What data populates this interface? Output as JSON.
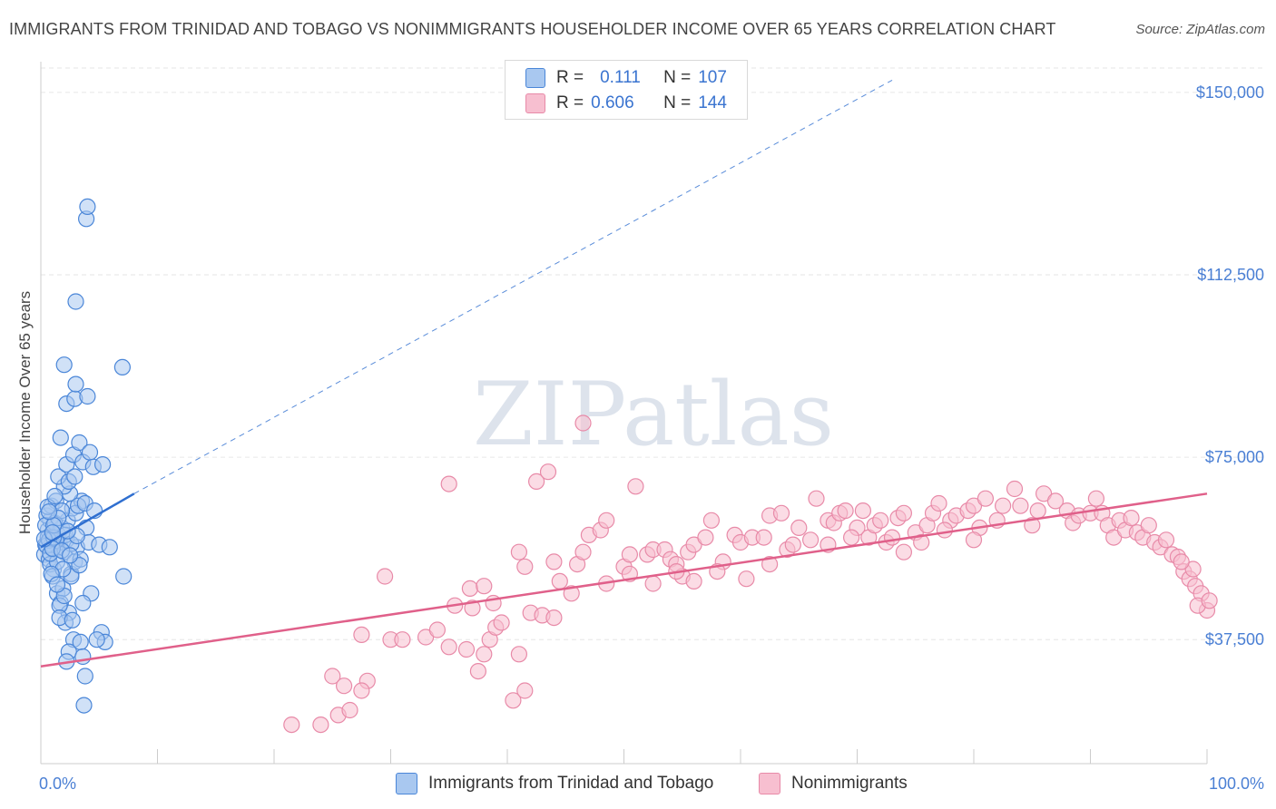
{
  "header": {
    "title": "IMMIGRANTS FROM TRINIDAD AND TOBAGO VS NONIMMIGRANTS HOUSEHOLDER INCOME OVER 65 YEARS CORRELATION CHART",
    "source": "Source: ZipAtlas.com"
  },
  "watermark": "ZIPatlas",
  "legend": {
    "rows": [
      {
        "r_label": "R =",
        "r_value": "0.111",
        "n_label": "N =",
        "n_value": "107"
      },
      {
        "r_label": "R =",
        "r_value": "0.606",
        "n_label": "N =",
        "n_value": "144"
      }
    ]
  },
  "bottom_legend": {
    "blue_label": "Immigrants from Trinidad and Tobago",
    "pink_label": "Nonimmigrants"
  },
  "colors": {
    "blue_fill": "#a9c8f0",
    "blue_stroke": "#4a86d8",
    "blue_line": "#2f6fd0",
    "pink_fill": "#f7bfd0",
    "pink_stroke": "#e88aa8",
    "pink_line": "#e0608a",
    "tick_text": "#4a7fd4",
    "grid": "#e6e6e6"
  },
  "chart_data": {
    "type": "scatter",
    "title": "IMMIGRANTS FROM TRINIDAD AND TOBAGO VS NONIMMIGRANTS HOUSEHOLDER INCOME OVER 65 YEARS CORRELATION CHART",
    "xlabel": "",
    "ylabel": "Householder Income Over 65 years",
    "xlim": [
      0,
      100
    ],
    "ylim": [
      12000,
      155000
    ],
    "x_tick_labels": [
      "0.0%",
      "100.0%"
    ],
    "y_ticks": [
      37500,
      75000,
      112500,
      150000
    ],
    "y_tick_labels": [
      "$37,500",
      "$75,000",
      "$112,500",
      "$150,000"
    ],
    "series": [
      {
        "name": "Immigrants from Trinidad and Tobago",
        "r": 0.111,
        "n": 107,
        "trend": {
          "x0": 0,
          "y0": 56500,
          "x1": 8,
          "y1": 67500,
          "extended_to_x": 73,
          "extended_y": 152500
        },
        "points": [
          [
            0.4,
            57000
          ],
          [
            0.6,
            60000
          ],
          [
            0.3,
            55000
          ],
          [
            0.8,
            62000
          ],
          [
            1.0,
            58000
          ],
          [
            0.5,
            63000
          ],
          [
            1.2,
            56000
          ],
          [
            0.7,
            54000
          ],
          [
            1.5,
            59000
          ],
          [
            0.9,
            65000
          ],
          [
            1.1,
            52000
          ],
          [
            0.4,
            61000
          ],
          [
            1.6,
            57500
          ],
          [
            2.0,
            55500
          ],
          [
            0.6,
            58500
          ],
          [
            1.3,
            66000
          ],
          [
            0.8,
            53000
          ],
          [
            1.8,
            60500
          ],
          [
            2.2,
            58000
          ],
          [
            1.0,
            50500
          ],
          [
            1.4,
            47000
          ],
          [
            1.9,
            48000
          ],
          [
            1.7,
            45000
          ],
          [
            2.4,
            43000
          ],
          [
            2.1,
            41000
          ],
          [
            1.6,
            44500
          ],
          [
            2.6,
            51000
          ],
          [
            2.9,
            53500
          ],
          [
            3.1,
            56500
          ],
          [
            2.3,
            62000
          ],
          [
            2.7,
            64500
          ],
          [
            3.5,
            66000
          ],
          [
            3.0,
            63500
          ],
          [
            2.5,
            67500
          ],
          [
            2.0,
            69000
          ],
          [
            1.5,
            71000
          ],
          [
            2.2,
            73500
          ],
          [
            2.8,
            75500
          ],
          [
            3.3,
            78000
          ],
          [
            1.7,
            79000
          ],
          [
            3.6,
            74000
          ],
          [
            4.2,
            76000
          ],
          [
            4.5,
            73000
          ],
          [
            5.3,
            73500
          ],
          [
            3.9,
            60500
          ],
          [
            4.1,
            57500
          ],
          [
            2.6,
            50500
          ],
          [
            3.4,
            54000
          ],
          [
            2.1,
            59000
          ],
          [
            1.2,
            61500
          ],
          [
            1.8,
            64000
          ],
          [
            2.4,
            70000
          ],
          [
            2.9,
            71000
          ],
          [
            3.2,
            65000
          ],
          [
            3.8,
            65500
          ],
          [
            4.6,
            64000
          ],
          [
            5.0,
            57000
          ],
          [
            5.9,
            56500
          ],
          [
            4.3,
            47000
          ],
          [
            2.2,
            86000
          ],
          [
            2.0,
            94000
          ],
          [
            2.9,
            87000
          ],
          [
            3.0,
            90000
          ],
          [
            4.0,
            87500
          ],
          [
            7.0,
            93500
          ],
          [
            3.0,
            107000
          ],
          [
            3.9,
            124000
          ],
          [
            4.0,
            126500
          ],
          [
            3.6,
            45000
          ],
          [
            2.8,
            37500
          ],
          [
            2.4,
            35000
          ],
          [
            3.4,
            37000
          ],
          [
            3.6,
            34000
          ],
          [
            3.8,
            30000
          ],
          [
            3.7,
            24000
          ],
          [
            5.2,
            39000
          ],
          [
            5.5,
            37000
          ],
          [
            7.1,
            50500
          ],
          [
            4.8,
            37500
          ],
          [
            2.2,
            33000
          ],
          [
            0.9,
            57000
          ],
          [
            1.3,
            57800
          ],
          [
            0.5,
            56800
          ],
          [
            0.7,
            57900
          ],
          [
            1.1,
            58500
          ],
          [
            1.4,
            53500
          ],
          [
            0.8,
            55200
          ],
          [
            1.0,
            56200
          ],
          [
            0.3,
            58200
          ],
          [
            1.9,
            52000
          ],
          [
            2.6,
            57200
          ],
          [
            1.5,
            62500
          ],
          [
            0.6,
            64800
          ],
          [
            1.2,
            67000
          ],
          [
            2.0,
            46500
          ],
          [
            1.6,
            42000
          ],
          [
            2.7,
            41500
          ],
          [
            3.1,
            58800
          ],
          [
            0.9,
            51000
          ],
          [
            1.4,
            48800
          ],
          [
            2.3,
            59800
          ],
          [
            1.1,
            61000
          ],
          [
            3.3,
            52800
          ],
          [
            0.7,
            63800
          ],
          [
            1.8,
            55800
          ],
          [
            2.5,
            54800
          ],
          [
            1.0,
            59500
          ]
        ]
      },
      {
        "name": "Nonimmigrants",
        "r": 0.606,
        "n": 144,
        "trend": {
          "x0": 0,
          "y0": 32000,
          "x1": 100,
          "y1": 67500
        },
        "points": [
          [
            21.5,
            20000
          ],
          [
            24.0,
            20000
          ],
          [
            25.5,
            22000
          ],
          [
            26.5,
            23000
          ],
          [
            25.0,
            30000
          ],
          [
            26.0,
            28000
          ],
          [
            28.0,
            29000
          ],
          [
            27.5,
            27000
          ],
          [
            30.0,
            37500
          ],
          [
            31.0,
            37500
          ],
          [
            33.0,
            38000
          ],
          [
            34.0,
            39500
          ],
          [
            35.0,
            36000
          ],
          [
            36.5,
            35500
          ],
          [
            37.5,
            31000
          ],
          [
            38.5,
            37500
          ],
          [
            38.0,
            34500
          ],
          [
            39.0,
            40000
          ],
          [
            39.5,
            41000
          ],
          [
            40.5,
            25000
          ],
          [
            41.5,
            27000
          ],
          [
            41.0,
            34500
          ],
          [
            42.0,
            43000
          ],
          [
            43.0,
            42500
          ],
          [
            44.0,
            42000
          ],
          [
            27.5,
            38500
          ],
          [
            29.5,
            50500
          ],
          [
            35.5,
            44500
          ],
          [
            37.0,
            44000
          ],
          [
            38.8,
            45000
          ],
          [
            41.0,
            55500
          ],
          [
            44.0,
            53500
          ],
          [
            46.0,
            53000
          ],
          [
            46.5,
            55500
          ],
          [
            47.0,
            59000
          ],
          [
            48.0,
            60000
          ],
          [
            48.5,
            62000
          ],
          [
            50.0,
            52500
          ],
          [
            50.5,
            55000
          ],
          [
            52.0,
            55000
          ],
          [
            52.5,
            56000
          ],
          [
            53.5,
            56000
          ],
          [
            54.0,
            54000
          ],
          [
            54.5,
            53000
          ],
          [
            55.0,
            50500
          ],
          [
            55.5,
            55500
          ],
          [
            56.0,
            57000
          ],
          [
            57.0,
            58500
          ],
          [
            57.5,
            62000
          ],
          [
            58.5,
            53500
          ],
          [
            59.5,
            59000
          ],
          [
            60.0,
            57500
          ],
          [
            61.0,
            58500
          ],
          [
            62.0,
            58500
          ],
          [
            62.5,
            63000
          ],
          [
            63.5,
            63500
          ],
          [
            64.0,
            56000
          ],
          [
            65.0,
            60500
          ],
          [
            66.0,
            58000
          ],
          [
            66.5,
            66500
          ],
          [
            67.5,
            62000
          ],
          [
            68.0,
            61500
          ],
          [
            68.5,
            63500
          ],
          [
            69.0,
            64000
          ],
          [
            70.0,
            60500
          ],
          [
            70.5,
            64000
          ],
          [
            71.0,
            58500
          ],
          [
            71.5,
            61000
          ],
          [
            72.5,
            57500
          ],
          [
            73.0,
            58500
          ],
          [
            73.5,
            62500
          ],
          [
            74.0,
            55500
          ],
          [
            75.0,
            59500
          ],
          [
            75.5,
            57500
          ],
          [
            76.0,
            61000
          ],
          [
            76.5,
            63500
          ],
          [
            77.0,
            65500
          ],
          [
            78.0,
            62000
          ],
          [
            78.5,
            63000
          ],
          [
            79.5,
            64000
          ],
          [
            80.0,
            65000
          ],
          [
            80.5,
            60500
          ],
          [
            81.0,
            66500
          ],
          [
            82.0,
            62000
          ],
          [
            82.5,
            65000
          ],
          [
            83.5,
            68500
          ],
          [
            84.0,
            65000
          ],
          [
            85.0,
            61000
          ],
          [
            85.5,
            64000
          ],
          [
            86.0,
            67500
          ],
          [
            87.0,
            66000
          ],
          [
            88.0,
            64000
          ],
          [
            88.5,
            61500
          ],
          [
            89.0,
            63000
          ],
          [
            90.0,
            63500
          ],
          [
            90.5,
            66500
          ],
          [
            91.0,
            63500
          ],
          [
            91.5,
            61000
          ],
          [
            92.0,
            58500
          ],
          [
            92.5,
            62000
          ],
          [
            93.0,
            60000
          ],
          [
            93.5,
            62500
          ],
          [
            94.0,
            59500
          ],
          [
            94.5,
            58500
          ],
          [
            95.0,
            61000
          ],
          [
            95.5,
            57500
          ],
          [
            96.0,
            56500
          ],
          [
            96.5,
            58000
          ],
          [
            97.0,
            55000
          ],
          [
            97.5,
            54500
          ],
          [
            98.0,
            51500
          ],
          [
            98.5,
            50000
          ],
          [
            99.0,
            48500
          ],
          [
            99.5,
            47000
          ],
          [
            100.0,
            43500
          ],
          [
            99.2,
            44500
          ],
          [
            100.2,
            45500
          ],
          [
            98.8,
            52000
          ],
          [
            97.8,
            53500
          ],
          [
            42.5,
            70000
          ],
          [
            46.5,
            82000
          ],
          [
            43.5,
            72000
          ],
          [
            35.0,
            69500
          ],
          [
            51.0,
            69000
          ],
          [
            36.8,
            48000
          ],
          [
            38.0,
            48500
          ],
          [
            45.5,
            47000
          ],
          [
            41.5,
            52500
          ],
          [
            44.5,
            49500
          ],
          [
            48.5,
            49000
          ],
          [
            50.5,
            51000
          ],
          [
            52.5,
            49000
          ],
          [
            54.5,
            51500
          ],
          [
            56.0,
            49500
          ],
          [
            58.0,
            51500
          ],
          [
            60.5,
            50000
          ],
          [
            62.5,
            53000
          ],
          [
            64.5,
            57000
          ],
          [
            67.5,
            57000
          ],
          [
            69.5,
            58500
          ],
          [
            72.0,
            62000
          ],
          [
            74.0,
            63500
          ],
          [
            77.5,
            60000
          ],
          [
            80.0,
            58000
          ]
        ]
      }
    ]
  }
}
